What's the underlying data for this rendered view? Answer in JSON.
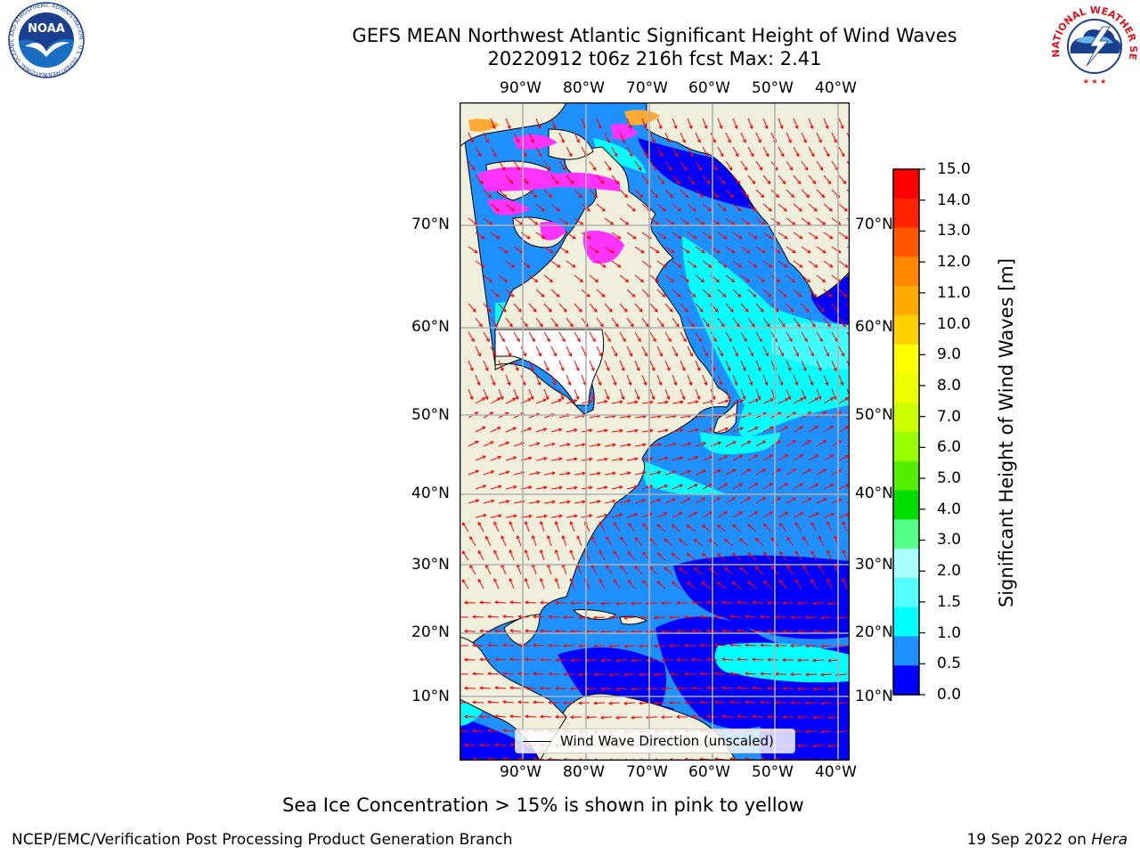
{
  "header": {
    "title_line1": "GEFS MEAN Northwest Atlantic Significant Height of Wind Waves",
    "title_line2": "20220912 t06z 216h fcst   Max: 2.41"
  },
  "logos": {
    "noaa": {
      "text": "NOAA",
      "ring_text": "NATIONAL OCEANIC AND ATMOSPHERIC ADMINISTRATION · U.S. DEPARTMENT OF COMMERCE"
    },
    "nws": {
      "ring_text": "NATIONAL WEATHER SERVICE"
    }
  },
  "map": {
    "lon_labels": [
      "90°W",
      "80°W",
      "70°W",
      "60°W",
      "50°W",
      "40°W"
    ],
    "lat_labels": [
      "70°N",
      "60°N",
      "50°N",
      "40°N",
      "30°N",
      "20°N",
      "10°N"
    ],
    "colors": {
      "land": "#efefdc",
      "waves_0_05": "#0000ff",
      "waves_05_10": "#1e90ff",
      "waves_10_15": "#00ffff",
      "waves_15_20": "#40ffff",
      "sea_ice": "#ff33ff",
      "sea_ice_high": "#ffaa33",
      "arrow": "#ff0000",
      "coast": "#000000",
      "grid": "#b0b0b0"
    },
    "legend_label": "Wind Wave Direction (unscaled)"
  },
  "colorbar": {
    "label": "Significant Height of Wind Waves [m]",
    "ticks": [
      "15.0",
      "14.0",
      "13.0",
      "12.0",
      "11.0",
      "10.0",
      "9.0",
      "8.0",
      "7.0",
      "6.0",
      "5.0",
      "4.0",
      "3.0",
      "2.0",
      "1.5",
      "1.0",
      "0.5",
      "0.0"
    ],
    "colors_top_to_bottom": [
      "#ff0000",
      "#ff2200",
      "#ff5500",
      "#ff8800",
      "#ffaa00",
      "#ffd000",
      "#ffff00",
      "#eeff00",
      "#ccff00",
      "#99ff00",
      "#55ee00",
      "#00dd00",
      "#55ff88",
      "#aaffff",
      "#55ffff",
      "#00ffff",
      "#1e90ff",
      "#0000ff"
    ]
  },
  "caption": "Sea Ice Concentration > 15% is shown in pink to yellow",
  "footer": {
    "left": "NCEP/EMC/Verification Post Processing Product Generation Branch",
    "date": "19 Sep 2022 on ",
    "machine": "Hera"
  }
}
